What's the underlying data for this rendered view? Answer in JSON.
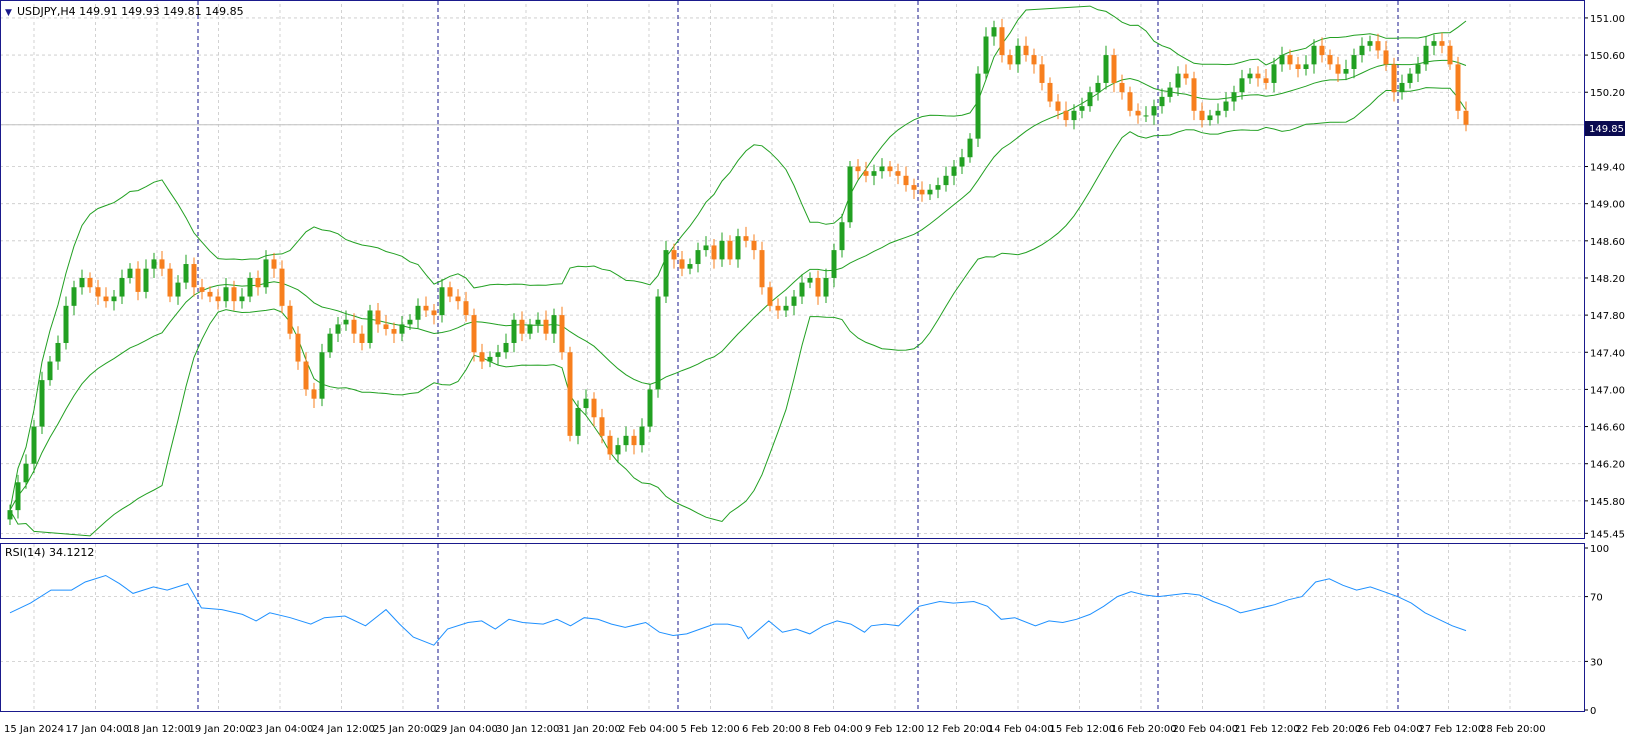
{
  "header": {
    "arrow": "▼",
    "symbol_line": "USDJPY,H4  149.91 149.93 149.81 149.85"
  },
  "price_badge": "149.85",
  "rsi_header": "RSI(14) 34.1212",
  "colors": {
    "background": "#ffffff",
    "frame": "#1a1a8c",
    "grid": "#c8c8c8",
    "session_sep": "#1a1a8c",
    "bull": "#22a022",
    "bear": "#f77f1e",
    "bands": "#22a022",
    "rsi": "#1e90ff",
    "badge_bg": "#0a0a50",
    "badge_fg": "#ffffff"
  },
  "chart_data": {
    "type": "candlestick",
    "symbol": "USDJPY",
    "timeframe": "H4",
    "ohlc_last": {
      "open": 149.91,
      "high": 149.93,
      "low": 149.81,
      "close": 149.85
    },
    "price_ticks": [
      "151.00",
      "150.60",
      "150.20",
      "149.85",
      "149.40",
      "149.00",
      "148.60",
      "148.20",
      "147.80",
      "147.40",
      "147.00",
      "146.60",
      "146.20",
      "145.80",
      "145.45"
    ],
    "price_tick_values": [
      151.0,
      150.6,
      150.2,
      149.85,
      149.4,
      149.0,
      148.6,
      148.2,
      147.8,
      147.4,
      147.0,
      146.6,
      146.2,
      145.8,
      145.45
    ],
    "ylim": [
      145.4,
      151.15
    ],
    "rsi_ticks": [
      "100",
      "70",
      "30",
      "0"
    ],
    "rsi_tick_values": [
      100,
      70,
      30,
      0
    ],
    "rsi_ylim": [
      0,
      100
    ],
    "time_labels": [
      "15 Jan 2024",
      "17 Jan 04:00",
      "18 Jan 12:00",
      "19 Jan 20:00",
      "23 Jan 04:00",
      "24 Jan 12:00",
      "25 Jan 20:00",
      "29 Jan 04:00",
      "30 Jan 12:00",
      "31 Jan 20:00",
      "2 Feb 04:00",
      "5 Feb 12:00",
      "6 Feb 20:00",
      "8 Feb 04:00",
      "9 Feb 12:00",
      "12 Feb 20:00",
      "14 Feb 04:00",
      "15 Feb 12:00",
      "16 Feb 20:00",
      "20 Feb 04:00",
      "21 Feb 12:00",
      "22 Feb 20:00",
      "26 Feb 04:00",
      "27 Feb 12:00",
      "28 Feb 20:00"
    ],
    "session_separator_bars": [
      24,
      54,
      84,
      114,
      144,
      174
    ],
    "close_path": [
      [
        0,
        145.7
      ],
      [
        1,
        146.0
      ],
      [
        2,
        146.2
      ],
      [
        3,
        146.6
      ],
      [
        4,
        147.1
      ],
      [
        5,
        147.3
      ],
      [
        6,
        147.5
      ],
      [
        7,
        147.9
      ],
      [
        8,
        148.1
      ],
      [
        9,
        148.2
      ],
      [
        10,
        148.1
      ],
      [
        11,
        148.0
      ],
      [
        12,
        147.95
      ],
      [
        13,
        148.0
      ],
      [
        14,
        148.2
      ],
      [
        15,
        148.3
      ],
      [
        16,
        148.05
      ],
      [
        17,
        148.3
      ],
      [
        18,
        148.4
      ],
      [
        19,
        148.3
      ],
      [
        20,
        148.0
      ],
      [
        21,
        148.15
      ],
      [
        22,
        148.35
      ],
      [
        23,
        148.1
      ],
      [
        24,
        148.05
      ],
      [
        25,
        148.0
      ],
      [
        26,
        147.95
      ],
      [
        27,
        148.1
      ],
      [
        28,
        147.95
      ],
      [
        29,
        148.0
      ],
      [
        30,
        148.2
      ],
      [
        31,
        148.1
      ],
      [
        32,
        148.4
      ],
      [
        33,
        148.3
      ],
      [
        34,
        147.9
      ],
      [
        35,
        147.6
      ],
      [
        36,
        147.3
      ],
      [
        37,
        147.0
      ],
      [
        38,
        146.9
      ],
      [
        39,
        147.4
      ],
      [
        40,
        147.6
      ],
      [
        41,
        147.7
      ],
      [
        42,
        147.75
      ],
      [
        43,
        147.6
      ],
      [
        44,
        147.5
      ],
      [
        45,
        147.85
      ],
      [
        46,
        147.7
      ],
      [
        47,
        147.65
      ],
      [
        48,
        147.6
      ],
      [
        49,
        147.7
      ],
      [
        50,
        147.75
      ],
      [
        51,
        147.9
      ],
      [
        52,
        147.85
      ],
      [
        53,
        147.8
      ],
      [
        54,
        148.1
      ],
      [
        55,
        148.0
      ],
      [
        56,
        147.95
      ],
      [
        57,
        147.8
      ],
      [
        58,
        147.4
      ],
      [
        59,
        147.3
      ],
      [
        60,
        147.35
      ],
      [
        61,
        147.4
      ],
      [
        62,
        147.5
      ],
      [
        63,
        147.75
      ],
      [
        64,
        147.6
      ],
      [
        65,
        147.7
      ],
      [
        66,
        147.75
      ],
      [
        67,
        147.6
      ],
      [
        68,
        147.8
      ],
      [
        69,
        147.4
      ],
      [
        70,
        146.5
      ],
      [
        71,
        146.8
      ],
      [
        72,
        146.9
      ],
      [
        73,
        146.7
      ],
      [
        74,
        146.5
      ],
      [
        75,
        146.3
      ],
      [
        76,
        146.4
      ],
      [
        77,
        146.5
      ],
      [
        78,
        146.4
      ],
      [
        79,
        146.6
      ],
      [
        80,
        147.0
      ],
      [
        81,
        148.0
      ],
      [
        82,
        148.5
      ],
      [
        83,
        148.4
      ],
      [
        84,
        148.3
      ],
      [
        85,
        148.35
      ],
      [
        86,
        148.5
      ],
      [
        87,
        148.55
      ],
      [
        88,
        148.4
      ],
      [
        89,
        148.6
      ],
      [
        90,
        148.4
      ],
      [
        91,
        148.65
      ],
      [
        92,
        148.6
      ],
      [
        93,
        148.5
      ],
      [
        94,
        148.1
      ],
      [
        95,
        147.9
      ],
      [
        96,
        147.85
      ],
      [
        97,
        147.9
      ],
      [
        98,
        148.0
      ],
      [
        99,
        148.15
      ],
      [
        100,
        148.2
      ],
      [
        101,
        148.0
      ],
      [
        102,
        148.2
      ],
      [
        103,
        148.5
      ],
      [
        104,
        148.8
      ],
      [
        105,
        149.4
      ],
      [
        106,
        149.35
      ],
      [
        107,
        149.3
      ],
      [
        108,
        149.35
      ],
      [
        109,
        149.4
      ],
      [
        110,
        149.35
      ],
      [
        111,
        149.3
      ],
      [
        112,
        149.2
      ],
      [
        113,
        149.15
      ],
      [
        114,
        149.1
      ],
      [
        115,
        149.15
      ],
      [
        116,
        149.2
      ],
      [
        117,
        149.3
      ],
      [
        118,
        149.4
      ],
      [
        119,
        149.5
      ],
      [
        120,
        149.7
      ],
      [
        121,
        150.4
      ],
      [
        122,
        150.8
      ],
      [
        123,
        150.9
      ],
      [
        124,
        150.6
      ],
      [
        125,
        150.5
      ],
      [
        126,
        150.7
      ],
      [
        127,
        150.6
      ],
      [
        128,
        150.5
      ],
      [
        129,
        150.3
      ],
      [
        130,
        150.1
      ],
      [
        131,
        150.0
      ],
      [
        132,
        149.9
      ],
      [
        133,
        150.0
      ],
      [
        134,
        150.05
      ],
      [
        135,
        150.2
      ],
      [
        136,
        150.3
      ],
      [
        137,
        150.6
      ],
      [
        138,
        150.3
      ],
      [
        139,
        150.2
      ],
      [
        140,
        150.0
      ],
      [
        141,
        149.95
      ],
      [
        142,
        149.95
      ],
      [
        143,
        150.05
      ],
      [
        144,
        150.15
      ],
      [
        145,
        150.25
      ],
      [
        146,
        150.4
      ],
      [
        147,
        150.35
      ],
      [
        148,
        150.0
      ],
      [
        149,
        149.9
      ],
      [
        150,
        149.95
      ],
      [
        151,
        150.0
      ],
      [
        152,
        150.1
      ],
      [
        153,
        150.2
      ],
      [
        154,
        150.35
      ],
      [
        155,
        150.4
      ],
      [
        156,
        150.35
      ],
      [
        157,
        150.3
      ],
      [
        158,
        150.5
      ],
      [
        159,
        150.6
      ],
      [
        160,
        150.5
      ],
      [
        161,
        150.45
      ],
      [
        162,
        150.5
      ],
      [
        163,
        150.7
      ],
      [
        164,
        150.6
      ],
      [
        165,
        150.5
      ],
      [
        166,
        150.4
      ],
      [
        167,
        150.45
      ],
      [
        168,
        150.6
      ],
      [
        169,
        150.7
      ],
      [
        170,
        150.75
      ],
      [
        171,
        150.65
      ],
      [
        172,
        150.5
      ],
      [
        173,
        150.2
      ],
      [
        174,
        150.3
      ],
      [
        175,
        150.4
      ],
      [
        176,
        150.5
      ],
      [
        177,
        150.7
      ],
      [
        178,
        150.75
      ],
      [
        179,
        150.7
      ],
      [
        180,
        150.5
      ],
      [
        181,
        150.0
      ],
      [
        182,
        149.85
      ]
    ],
    "rsi_path": [
      [
        0,
        60
      ],
      [
        3,
        66
      ],
      [
        6,
        74
      ],
      [
        9,
        74
      ],
      [
        11,
        79
      ],
      [
        14,
        83
      ],
      [
        16,
        78
      ],
      [
        18,
        72
      ],
      [
        21,
        76
      ],
      [
        23,
        74
      ],
      [
        26,
        78
      ],
      [
        28,
        63
      ],
      [
        31,
        62
      ],
      [
        34,
        59
      ],
      [
        36,
        55
      ],
      [
        38,
        60
      ],
      [
        41,
        57
      ],
      [
        44,
        53
      ],
      [
        46,
        57
      ],
      [
        49,
        58
      ],
      [
        52,
        52
      ],
      [
        55,
        62
      ],
      [
        57,
        53
      ],
      [
        59,
        45
      ],
      [
        62,
        40
      ],
      [
        64,
        50
      ],
      [
        67,
        54
      ],
      [
        69,
        55
      ],
      [
        71,
        50
      ],
      [
        73,
        56
      ],
      [
        75,
        54
      ],
      [
        78,
        53
      ],
      [
        80,
        56
      ],
      [
        82,
        52
      ],
      [
        84,
        57
      ],
      [
        86,
        56
      ],
      [
        88,
        53
      ],
      [
        90,
        51
      ],
      [
        93,
        54
      ],
      [
        95,
        48
      ],
      [
        97,
        46
      ],
      [
        99,
        47
      ],
      [
        101,
        50
      ],
      [
        103,
        53
      ],
      [
        105,
        53
      ],
      [
        107,
        51
      ],
      [
        108,
        44
      ],
      [
        111,
        55
      ],
      [
        113,
        48
      ],
      [
        115,
        50
      ],
      [
        117,
        47
      ],
      [
        119,
        52
      ],
      [
        121,
        55
      ],
      [
        123,
        53
      ],
      [
        125,
        48
      ],
      [
        126,
        52
      ],
      [
        128,
        53
      ],
      [
        130,
        52
      ],
      [
        133,
        64
      ],
      [
        136,
        67
      ],
      [
        138,
        66
      ],
      [
        141,
        67
      ],
      [
        143,
        64
      ],
      [
        145,
        56
      ],
      [
        147,
        57
      ],
      [
        150,
        52
      ],
      [
        152,
        55
      ],
      [
        154,
        54
      ],
      [
        156,
        56
      ],
      [
        158,
        59
      ],
      [
        160,
        64
      ],
      [
        162,
        70
      ],
      [
        164,
        73
      ],
      [
        166,
        71
      ],
      [
        168,
        70
      ],
      [
        170,
        71
      ],
      [
        172,
        72
      ],
      [
        174,
        71
      ],
      [
        176,
        67
      ],
      [
        178,
        64
      ],
      [
        180,
        60
      ],
      [
        182,
        62
      ],
      [
        185,
        65
      ],
      [
        187,
        68
      ],
      [
        189,
        70
      ]
    ],
    "rsi_path_tail": [
      [
        189,
        70
      ],
      [
        191,
        79
      ],
      [
        193,
        81
      ],
      [
        195,
        77
      ],
      [
        197,
        74
      ],
      [
        199,
        76
      ],
      [
        201,
        73
      ],
      [
        203,
        70
      ],
      [
        205,
        66
      ],
      [
        207,
        60
      ],
      [
        209,
        56
      ],
      [
        211,
        52
      ],
      [
        213,
        49
      ]
    ]
  }
}
